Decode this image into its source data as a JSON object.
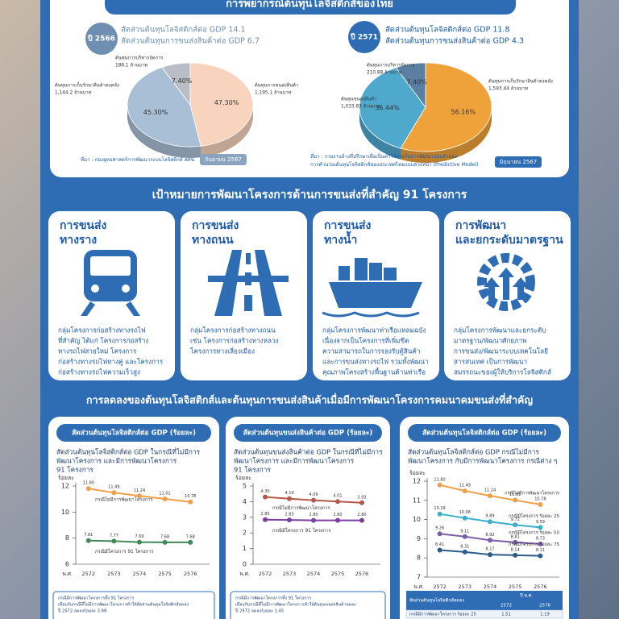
{
  "forecast_title": "การพยากรณ์ต้นทุนโลจิสติกส์ของไทย",
  "chart_data": [
    {
      "type": "pie",
      "year": "ปี 2566",
      "highlights": [
        "สัดส่วนต้นทุนโลจิสติกส์ต่อ GDP 14.1",
        "สัดส่วนต้นทุนการขนส่งสินค้าต่อ GDP 6.7"
      ],
      "categories": [
        "ต้นทุนการขนส่งสินค้า",
        "ต้นทุนการเก็บรักษาสินค้าคงคลัง",
        "ต้นทุนการบริหารจัดการ"
      ],
      "amounts": [
        "1,195.1 ล้านบาท",
        "1,144.2 ล้านบาท",
        "188.1 ล้านบาท"
      ],
      "values": [
        47.3,
        45.3,
        7.4
      ],
      "value_labels": [
        "47.30%",
        "45.30%",
        "7.40%"
      ],
      "colors": [
        "#f8d3bd",
        "#a9bfd5",
        "#b9bec6"
      ],
      "source": [
        "ที่มา : กองยุทธศาสตร์การพัฒนาระบบโลจิสติกส์ สศช."
      ],
      "date": "กันยายน 2567"
    },
    {
      "type": "pie",
      "year": "ปี 2571",
      "highlights": [
        "สัดส่วนต้นทุนโลจิสติกส์ต่อ GDP 11.8",
        "สัดส่วนต้นทุนการขนส่งสินค้าต่อ GDP 4.3"
      ],
      "categories": [
        "ต้นทุนการเก็บรักษาสินค้าคงคลัง",
        "ต้นทุนขนส่งสินค้า",
        "ต้นทุนการบริหารจัดการ"
      ],
      "amounts": [
        "1,593.44 ล้านบาท",
        "1,033.83 ล้านบาท",
        "210.88 ล้านบาท"
      ],
      "values": [
        56.16,
        36.44,
        7.4
      ],
      "value_labels": [
        "56.16%",
        "36.44%",
        "7.40%"
      ],
      "colors": [
        "#f0a23a",
        "#4fa9cd",
        "#5b7fa3"
      ],
      "source": [
        "ที่มา : รายงานจ้างที่ปรึกษาเพื่อเป็นค่าใช้จ่ายในการพัฒนาแบบจำลอง",
        "การคำนวณต้นทุนโลจิสติกส์ของประเทศไทยแบบล่วงหน้า (Predictive Model)"
      ],
      "date": "มิถุนายน 2567"
    },
    {
      "type": "line",
      "title": "สัดส่วนต้นทุนโลจิสติกส์ต่อ GDP (ร้อยละ)",
      "subtitle": [
        "สัดส่วนต้นทุนโลจิสติกส์ต่อ GDP ในกรณีที่ไม่มีการ",
        "พัฒนาโครงการ และมีการพัฒนาโครงการ",
        "91 โครงการ"
      ],
      "y_label": "ร้อยละ",
      "x_label": "พ.ศ.",
      "categories": [
        "2572",
        "2573",
        "2574",
        "2575",
        "2576"
      ],
      "ylim": [
        6,
        12
      ],
      "yticks": [
        6,
        8,
        10,
        12
      ],
      "series": [
        {
          "name": "กรณีไม่มีการพัฒนาโครงการ",
          "color": "#f0a04b",
          "values": [
            11.8,
            11.49,
            11.24,
            11.01,
            10.78
          ],
          "value_labels": [
            "11.80",
            "11.49",
            "11.24",
            "11.01",
            "10.78"
          ]
        },
        {
          "name": "กรณีมีโครงการ 91 โครงการ",
          "color": "#3e8b59",
          "values": [
            7.81,
            7.77,
            7.69,
            7.68,
            7.68
          ],
          "value_labels": [
            "7.81",
            "7.77",
            "7.69",
            "7.68",
            "7.68"
          ]
        }
      ],
      "notes": [
        "กรณีมีการพัฒนาโครงการทั้ง 91 โครงการ",
        "เทียบกับกรณีที่ไม่มีการพัฒนาโครงการทำให้สัดส่วนต้นทุนโลจิสติกส์ลดลง",
        "ปี 2572 ลดลงร้อยละ 3.99"
      ]
    },
    {
      "type": "line",
      "title": "สัดส่วนต้นทุนขนส่งสินค้าต่อ GDP (ร้อยละ)",
      "subtitle": [
        "สัดส่วนต้นทุนขนส่งสินค้าต่อ GDP ในกรณีที่ไม่มีการ",
        "พัฒนาโครงการ และมีการพัฒนาโครงการ",
        "91 โครงการ"
      ],
      "y_label": "ร้อยละ",
      "x_label": "พ.ศ.",
      "categories": [
        "2572",
        "2573",
        "2574",
        "2575",
        "2576"
      ],
      "ylim": [
        0,
        5
      ],
      "yticks": [
        0,
        1,
        2,
        3,
        4,
        5
      ],
      "series": [
        {
          "name": "กรณีไม่มีการพัฒนาโครงการ",
          "color": "#b5584c",
          "values": [
            4.3,
            4.19,
            4.09,
            4.01,
            3.93
          ],
          "value_labels": [
            "4.30",
            "4.19",
            "4.09",
            "4.01",
            "3.93"
          ]
        },
        {
          "name": "กรณีมีโครงการ 91 โครงการ",
          "color": "#7b3fa0",
          "values": [
            2.85,
            2.83,
            2.8,
            2.8,
            2.8
          ],
          "value_labels": [
            "2.85",
            "2.83",
            "2.80",
            "2.80",
            "2.80"
          ]
        }
      ],
      "notes": [
        "กรณีมีการพัฒนาโครงการทั้ง 91 โครงการ",
        "เทียบกับกรณีที่ไม่มีการพัฒนาโครงการทำให้ต้นทุนขนส่งสินค้าลดลง",
        "ปี 2572 ลดลงร้อยละ 1.45"
      ]
    },
    {
      "type": "line",
      "title": "สัดส่วนต้นทุนโลจิสติกส์ต่อ GDP (ร้อยละ)",
      "subtitle": [
        "สัดส่วนต้นทุนโลจิสติกส์ต่อ GDP กรณีไม่มีการ",
        "พัฒนาโครงการ กับมีการพัฒนาโครงการ กรณีต่าง ๆ"
      ],
      "y_label": "ร้อยละ",
      "x_label": "พ.ศ.",
      "categories": [
        "2572",
        "2573",
        "2574",
        "2575",
        "2576"
      ],
      "ylim": [
        7,
        12
      ],
      "yticks": [
        7,
        8,
        9,
        10,
        11,
        12
      ],
      "series": [
        {
          "name": "กรณีไม่มีการพัฒนาโครงการ",
          "color": "#f0a04b",
          "values": [
            11.8,
            11.49,
            11.24,
            11.01,
            10.78
          ],
          "value_labels": [
            "11.80",
            "11.49",
            "11.24",
            "11.01",
            "10.78"
          ]
        },
        {
          "name": "กรณีมีโครงการ ร้อยละ 25",
          "color": "#3ab0c8",
          "values": [
            10.29,
            10.08,
            9.89,
            9.72,
            9.59
          ],
          "value_labels": [
            "10.29",
            "10.08",
            "9.89",
            "9.72",
            "9.59"
          ]
        },
        {
          "name": "กรณีมีโครงการ ร้อยละ 50",
          "color": "#7b5ea7",
          "values": [
            9.26,
            9.11,
            8.92,
            8.81,
            8.73
          ],
          "value_labels": [
            "9.26",
            "9.11",
            "8.92",
            "8.81",
            "8.73"
          ]
        },
        {
          "name": "กรณีมีโครงการ ร้อยละ 75",
          "color": "#2a5d8a",
          "values": [
            8.41,
            8.31,
            8.17,
            8.14,
            8.11
          ],
          "value_labels": [
            "8.41",
            "8.31",
            "8.17",
            "8.14",
            "8.11"
          ]
        }
      ],
      "table": {
        "header": "สัดส่วนต้นทุนโลจิสติกส์ลดลง",
        "group": "ปี พ.ศ.",
        "columns": [
          "2572",
          "2576"
        ],
        "rows": [
          [
            "กรณีมีการพัฒนาโครงการ ร้อยละ 25",
            "1.51",
            "1.19"
          ]
        ]
      }
    }
  ],
  "projects": {
    "title": "เป้าหมายการพัฒนาโครงการด้านการขนส่งที่สำคัญ 91 โครงการ",
    "cards": [
      {
        "title": [
          "การขนส่ง",
          "ทางราง"
        ],
        "description": [
          "กลุ่มโครงการก่อสร้างทางรถไฟ",
          "ที่สำคัญ ได้แก่ โครงการก่อสร้าง",
          "ทางรถไฟสายใหม่ โครงการ",
          "ก่อสร้างทางรถไฟทางคู่ และโครงการ",
          "ก่อสร้างทางรถไฟความเร็วสูง"
        ]
      },
      {
        "title": [
          "การขนส่ง",
          "ทางถนน"
        ],
        "description": [
          "กลุ่มโครงการก่อสร้างทางถนน",
          "เช่น โครงการก่อสร้างทางหลวง",
          "โครงการทางเลี่ยงเมือง"
        ]
      },
      {
        "title": [
          "การขนส่ง",
          "ทางน้ำ"
        ],
        "description": [
          "กลุ่มโครงการพัฒนาท่าเรือแหลมฉบัง",
          "เนื่องจากเป็นโครงการที่เพิ่มขีด",
          "ความสามารถในการรองรับตู้สินค้า",
          "และการขนส่งทางรถไฟ รวมทั้งพัฒนา",
          "คุณภาพโครงสร้างพื้นฐานด้านท่าเรือ"
        ]
      },
      {
        "title": [
          "การพัฒนา",
          "และยกระดับมาตรฐาน"
        ],
        "description": [
          "กลุ่มโครงการพัฒนาและยกระดับ",
          "มาตรฐาน/พัฒนาศักยภาพ",
          "การขนส่ง/พัฒนาระบบเทคโนโลยี",
          "สารสนเทศ เป็นการพัฒนา",
          "สมรรถนะของผู้ให้บริการโลจิสติกส์"
        ]
      }
    ]
  },
  "reduction_title": "การลดลงของต้นทุนโลจิสติกส์และต้นทุนการขนส่งสินค้าเมื่อมีการพัฒนาโครงการคมนาคมขนส่งที่สำคัญ"
}
